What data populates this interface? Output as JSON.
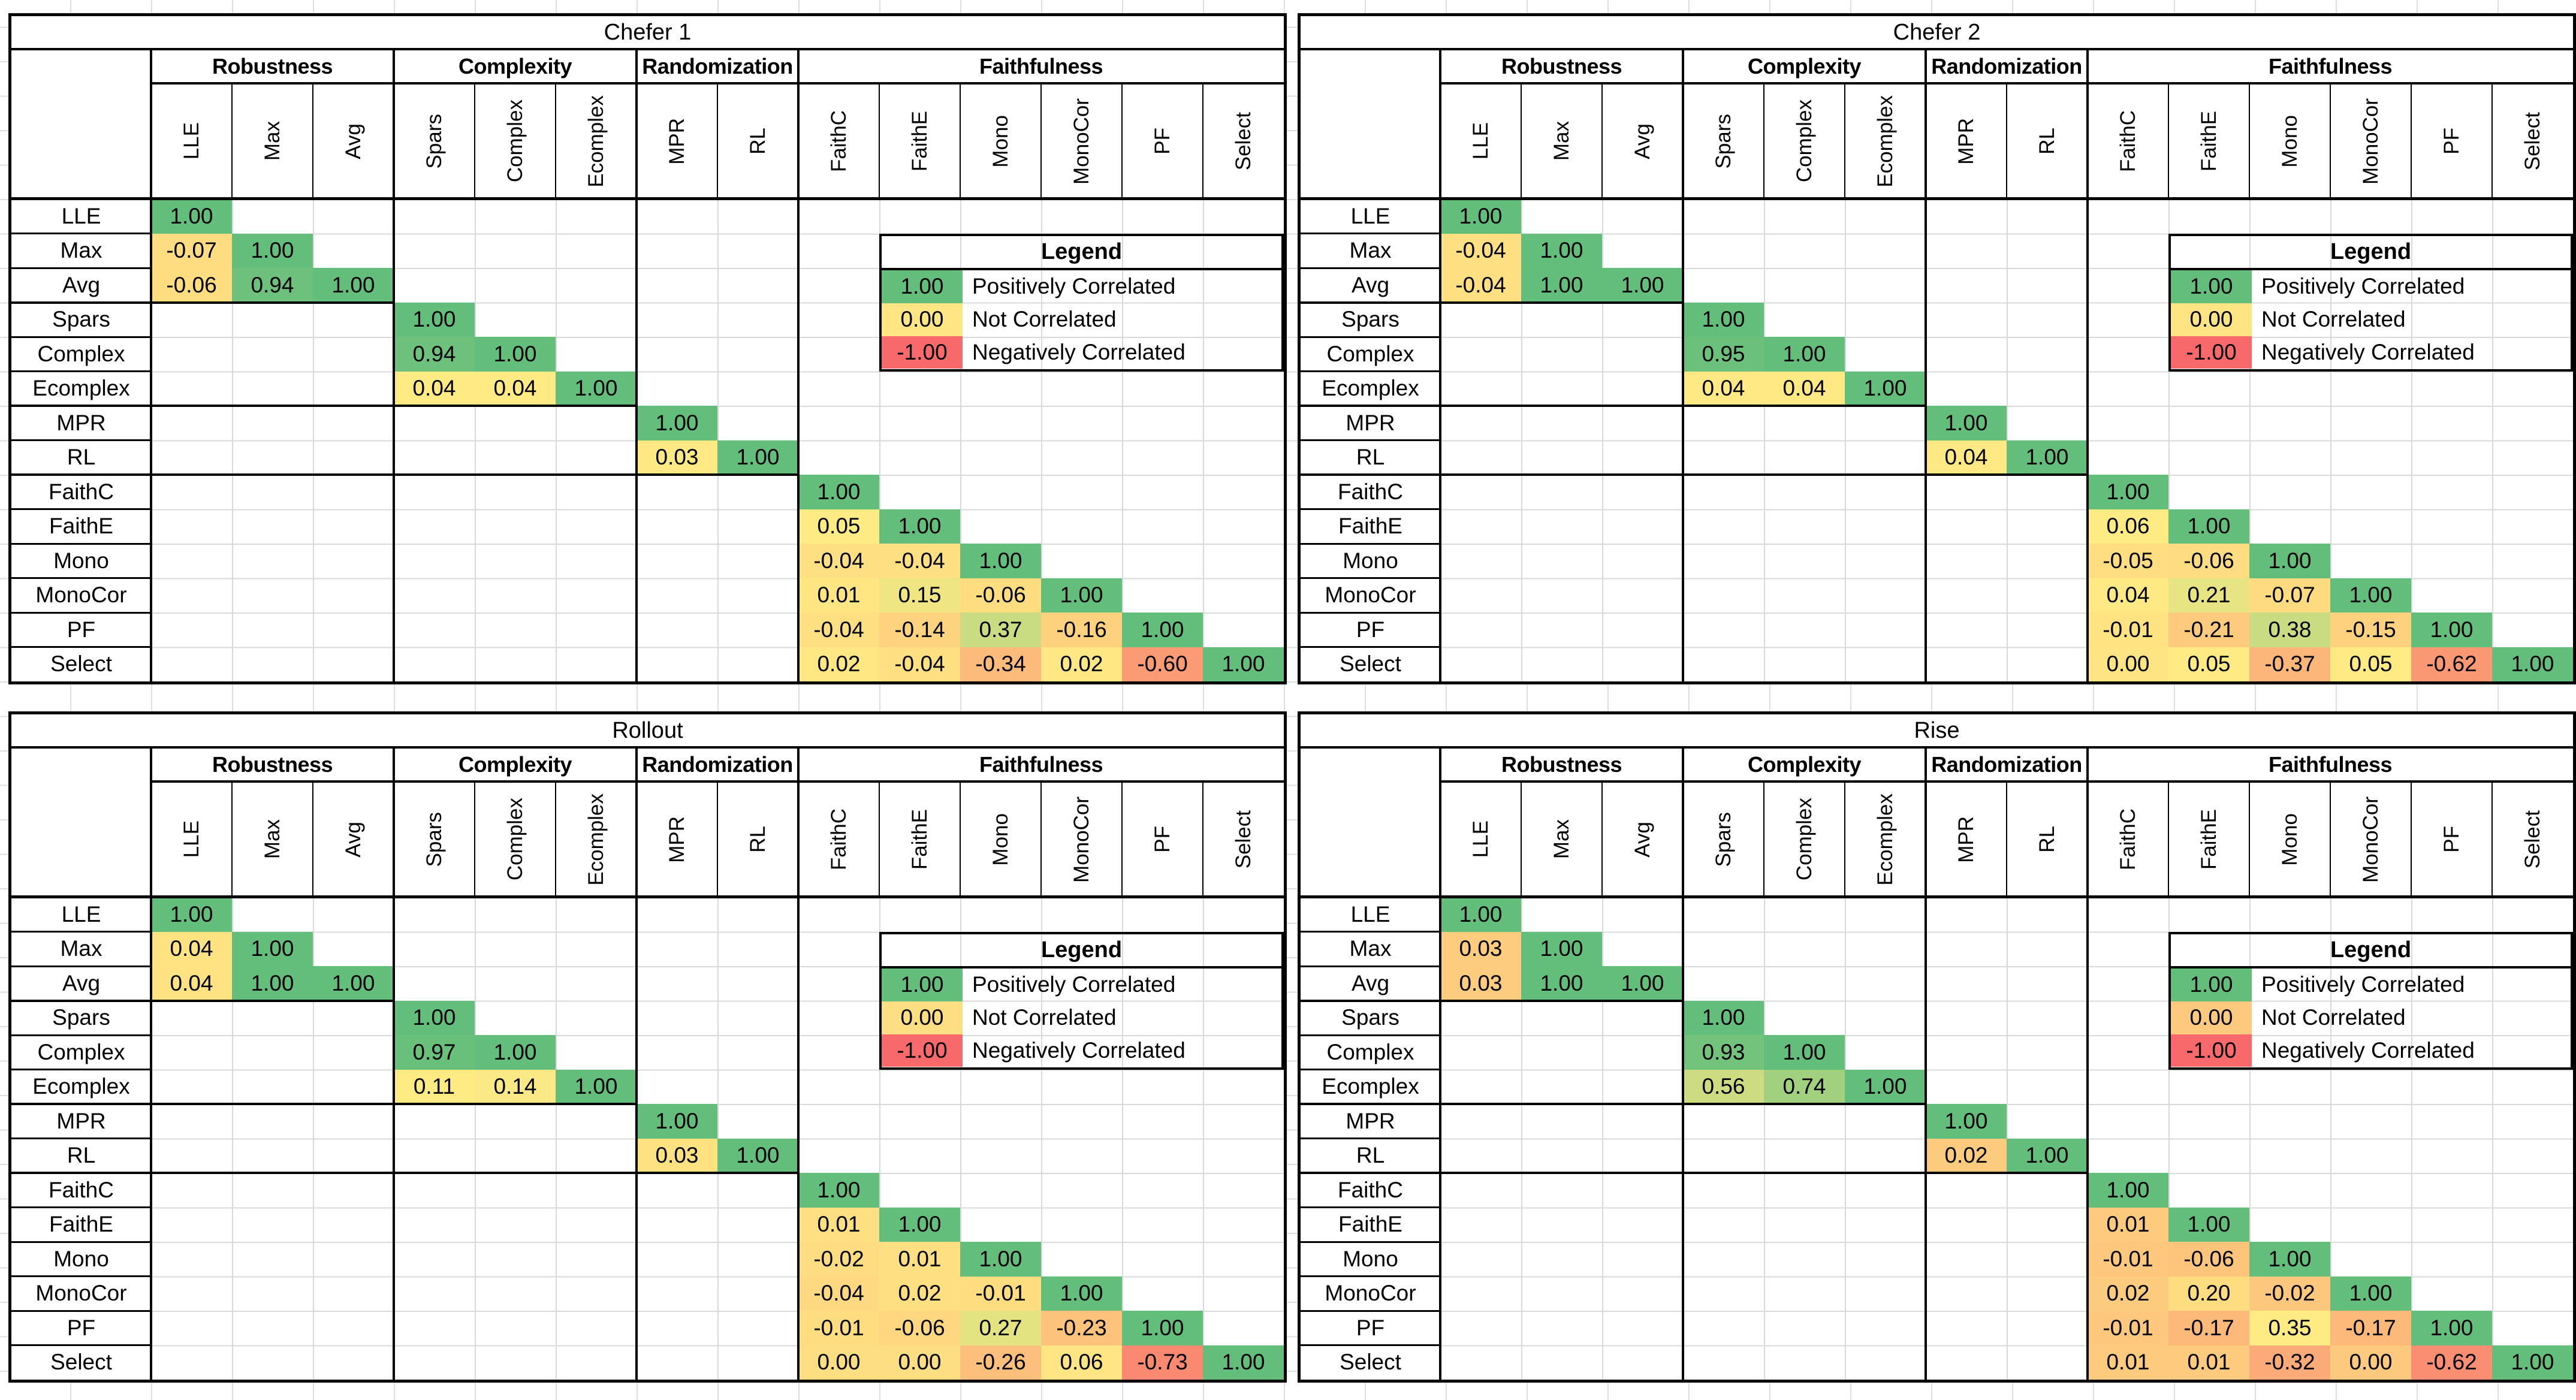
{
  "page": {
    "background": "#FFFFFF",
    "gridline_color": "#D9D9D9"
  },
  "metric_labels": [
    "LLE",
    "Max",
    "Avg",
    "Spars",
    "Complex",
    "Ecomplex",
    "MPR",
    "RL",
    "FaithC",
    "FaithE",
    "Mono",
    "MonoCor",
    "PF",
    "Select"
  ],
  "column_groups": [
    {
      "label": "Robustness",
      "span": 3
    },
    {
      "label": "Complexity",
      "span": 3
    },
    {
      "label": "Randomization",
      "span": 2
    },
    {
      "label": "Faithfulness",
      "span": 6
    }
  ],
  "legend": {
    "title": "Legend",
    "entries": [
      {
        "value": 1.0,
        "value_text": "1.00",
        "label": "Positively Correlated"
      },
      {
        "value": 0.0,
        "value_text": "0.00",
        "label": "Not Correlated"
      },
      {
        "value": -1.0,
        "value_text": "-1.00",
        "label": "Negatively Correlated"
      }
    ]
  },
  "color_scale": {
    "negative": "#F8696B",
    "neutral": "#FFEB84",
    "positive": "#63BE7B",
    "note": "3-color scale; midpoint at 50th percentile of each table's values (legend cells included)"
  },
  "chart_data": [
    {
      "type": "heatmap",
      "title": "Chefer 1",
      "categories": [
        "LLE",
        "Max",
        "Avg",
        "Spars",
        "Complex",
        "Ecomplex",
        "MPR",
        "RL",
        "FaithC",
        "FaithE",
        "Mono",
        "MonoCor",
        "PF",
        "Select"
      ],
      "triangular_values": [
        [
          1
        ],
        [
          -0.07,
          1
        ],
        [
          -0.06,
          0.94,
          1
        ],
        [
          null,
          null,
          null,
          1
        ],
        [
          null,
          null,
          null,
          0.94,
          1
        ],
        [
          null,
          null,
          null,
          0.04,
          0.04,
          1
        ],
        [
          null,
          null,
          null,
          null,
          null,
          null,
          1
        ],
        [
          null,
          null,
          null,
          null,
          null,
          null,
          0.03,
          1
        ],
        [
          null,
          null,
          null,
          null,
          null,
          null,
          null,
          null,
          1
        ],
        [
          null,
          null,
          null,
          null,
          null,
          null,
          null,
          null,
          0.05,
          1
        ],
        [
          null,
          null,
          null,
          null,
          null,
          null,
          null,
          null,
          -0.04,
          -0.04,
          1
        ],
        [
          null,
          null,
          null,
          null,
          null,
          null,
          null,
          null,
          0.01,
          0.15,
          -0.06,
          1
        ],
        [
          null,
          null,
          null,
          null,
          null,
          null,
          null,
          null,
          -0.04,
          -0.14,
          0.37,
          -0.16,
          1
        ],
        [
          null,
          null,
          null,
          null,
          null,
          null,
          null,
          null,
          0.02,
          -0.04,
          -0.34,
          0.02,
          -0.6,
          1
        ]
      ]
    },
    {
      "type": "heatmap",
      "title": "Chefer 2",
      "categories": [
        "LLE",
        "Max",
        "Avg",
        "Spars",
        "Complex",
        "Ecomplex",
        "MPR",
        "RL",
        "FaithC",
        "FaithE",
        "Mono",
        "MonoCor",
        "PF",
        "Select"
      ],
      "triangular_values": [
        [
          1
        ],
        [
          -0.04,
          1
        ],
        [
          -0.04,
          1,
          1
        ],
        [
          null,
          null,
          null,
          1
        ],
        [
          null,
          null,
          null,
          0.95,
          1
        ],
        [
          null,
          null,
          null,
          0.04,
          0.04,
          1
        ],
        [
          null,
          null,
          null,
          null,
          null,
          null,
          1
        ],
        [
          null,
          null,
          null,
          null,
          null,
          null,
          0.04,
          1
        ],
        [
          null,
          null,
          null,
          null,
          null,
          null,
          null,
          null,
          1
        ],
        [
          null,
          null,
          null,
          null,
          null,
          null,
          null,
          null,
          0.06,
          1
        ],
        [
          null,
          null,
          null,
          null,
          null,
          null,
          null,
          null,
          -0.05,
          -0.06,
          1
        ],
        [
          null,
          null,
          null,
          null,
          null,
          null,
          null,
          null,
          0.04,
          0.21,
          -0.07,
          1
        ],
        [
          null,
          null,
          null,
          null,
          null,
          null,
          null,
          null,
          -0.01,
          -0.21,
          0.38,
          -0.15,
          1
        ],
        [
          null,
          null,
          null,
          null,
          null,
          null,
          null,
          null,
          0,
          0.05,
          -0.37,
          0.05,
          -0.62,
          1
        ]
      ]
    },
    {
      "type": "heatmap",
      "title": "Rollout",
      "categories": [
        "LLE",
        "Max",
        "Avg",
        "Spars",
        "Complex",
        "Ecomplex",
        "MPR",
        "RL",
        "FaithC",
        "FaithE",
        "Mono",
        "MonoCor",
        "PF",
        "Select"
      ],
      "triangular_values": [
        [
          1
        ],
        [
          0.04,
          1
        ],
        [
          0.04,
          1,
          1
        ],
        [
          null,
          null,
          null,
          1
        ],
        [
          null,
          null,
          null,
          0.97,
          1
        ],
        [
          null,
          null,
          null,
          0.11,
          0.14,
          1
        ],
        [
          null,
          null,
          null,
          null,
          null,
          null,
          1
        ],
        [
          null,
          null,
          null,
          null,
          null,
          null,
          0.03,
          1
        ],
        [
          null,
          null,
          null,
          null,
          null,
          null,
          null,
          null,
          1
        ],
        [
          null,
          null,
          null,
          null,
          null,
          null,
          null,
          null,
          0.01,
          1
        ],
        [
          null,
          null,
          null,
          null,
          null,
          null,
          null,
          null,
          -0.02,
          0.01,
          1
        ],
        [
          null,
          null,
          null,
          null,
          null,
          null,
          null,
          null,
          -0.04,
          0.02,
          -0.01,
          1
        ],
        [
          null,
          null,
          null,
          null,
          null,
          null,
          null,
          null,
          -0.01,
          -0.06,
          0.27,
          -0.23,
          1
        ],
        [
          null,
          null,
          null,
          null,
          null,
          null,
          null,
          null,
          0,
          0,
          -0.26,
          0.06,
          -0.73,
          1
        ]
      ]
    },
    {
      "type": "heatmap",
      "title": "Rise",
      "categories": [
        "LLE",
        "Max",
        "Avg",
        "Spars",
        "Complex",
        "Ecomplex",
        "MPR",
        "RL",
        "FaithC",
        "FaithE",
        "Mono",
        "MonoCor",
        "PF",
        "Select"
      ],
      "triangular_values": [
        [
          1
        ],
        [
          0.03,
          1
        ],
        [
          0.03,
          1,
          1
        ],
        [
          null,
          null,
          null,
          1
        ],
        [
          null,
          null,
          null,
          0.93,
          1
        ],
        [
          null,
          null,
          null,
          0.56,
          0.74,
          1
        ],
        [
          null,
          null,
          null,
          null,
          null,
          null,
          1
        ],
        [
          null,
          null,
          null,
          null,
          null,
          null,
          0.02,
          1
        ],
        [
          null,
          null,
          null,
          null,
          null,
          null,
          null,
          null,
          1
        ],
        [
          null,
          null,
          null,
          null,
          null,
          null,
          null,
          null,
          0.01,
          1
        ],
        [
          null,
          null,
          null,
          null,
          null,
          null,
          null,
          null,
          -0.01,
          -0.06,
          1
        ],
        [
          null,
          null,
          null,
          null,
          null,
          null,
          null,
          null,
          0.02,
          0.2,
          -0.02,
          1
        ],
        [
          null,
          null,
          null,
          null,
          null,
          null,
          null,
          null,
          -0.01,
          -0.17,
          0.35,
          -0.17,
          1
        ],
        [
          null,
          null,
          null,
          null,
          null,
          null,
          null,
          null,
          0.01,
          0.01,
          -0.32,
          0,
          -0.62,
          1
        ]
      ]
    }
  ]
}
